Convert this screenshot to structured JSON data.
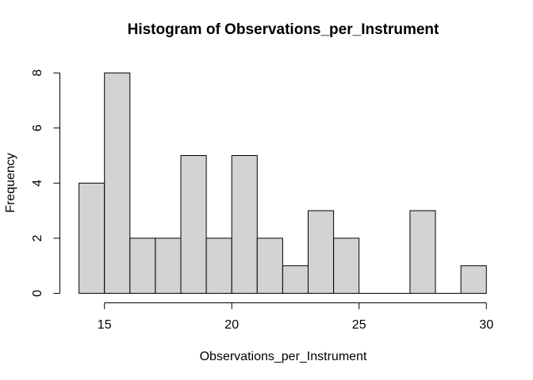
{
  "chart_data": {
    "type": "bar",
    "subtype": "histogram",
    "title": "Histogram of Observations_per_Instrument",
    "xlabel": "Observations_per_Instrument",
    "ylabel": "Frequency",
    "bin_start": 14,
    "bin_width": 1,
    "bin_edges": [
      14,
      15,
      16,
      17,
      18,
      19,
      20,
      21,
      22,
      23,
      24,
      25,
      26,
      27,
      28,
      29,
      30
    ],
    "frequencies": [
      4,
      8,
      2,
      2,
      5,
      2,
      5,
      2,
      1,
      3,
      2,
      0,
      0,
      3,
      0,
      1
    ],
    "x_ticks": [
      "15",
      "20",
      "25",
      "30"
    ],
    "y_ticks": [
      "0",
      "2",
      "4",
      "6",
      "8"
    ],
    "xlim": [
      14,
      30
    ],
    "ylim": [
      0,
      8
    ],
    "grid": false,
    "legend": false,
    "bar_fill": "#d3d3d3",
    "bar_border": "#000000",
    "axis_color": "#000000",
    "text_color": "#000000",
    "background": "#ffffff"
  }
}
